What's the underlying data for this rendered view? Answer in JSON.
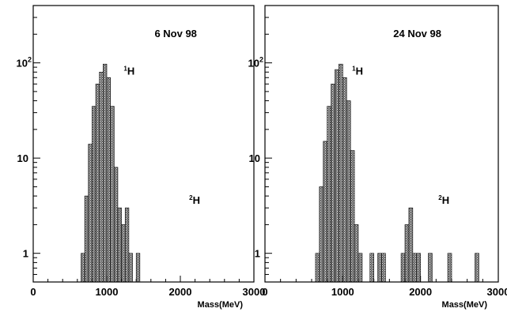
{
  "chart_data": [
    {
      "type": "histogram",
      "title": "6 Nov 98",
      "xlabel": "Mass(MeV)",
      "ylabel": "",
      "xlim": [
        0,
        3000
      ],
      "ylim": [
        0.5,
        400
      ],
      "yscale": "log",
      "bin_width": 50,
      "x_ticks": [
        "0",
        "1000",
        "2000",
        "3000"
      ],
      "y_ticks": [
        {
          "value": 1,
          "label": "1"
        },
        {
          "value": 10,
          "label": "10"
        },
        {
          "value": 100,
          "label": "10",
          "sup": "2"
        }
      ],
      "annotations": [
        {
          "label": "H",
          "sup": "1",
          "x": 1230,
          "y": 75
        },
        {
          "label": "H",
          "sup": "2",
          "x": 2120,
          "y": 3.3
        }
      ],
      "bins": [
        {
          "x": 650,
          "value": 1
        },
        {
          "x": 700,
          "value": 4
        },
        {
          "x": 750,
          "value": 14
        },
        {
          "x": 800,
          "value": 35
        },
        {
          "x": 850,
          "value": 60
        },
        {
          "x": 900,
          "value": 80
        },
        {
          "x": 950,
          "value": 97
        },
        {
          "x": 1000,
          "value": 70
        },
        {
          "x": 1050,
          "value": 35
        },
        {
          "x": 1100,
          "value": 8
        },
        {
          "x": 1150,
          "value": 3
        },
        {
          "x": 1200,
          "value": 2
        },
        {
          "x": 1250,
          "value": 3
        },
        {
          "x": 1300,
          "value": 1
        },
        {
          "x": 1400,
          "value": 1
        }
      ],
      "grid": false
    },
    {
      "type": "histogram",
      "title": "24 Nov 98",
      "xlabel": "Mass(MeV)",
      "ylabel": "",
      "xlim": [
        0,
        3000
      ],
      "ylim": [
        0.5,
        400
      ],
      "yscale": "log",
      "bin_width": 50,
      "x_ticks": [
        "0",
        "1000",
        "2000",
        "3000"
      ],
      "y_ticks": [
        {
          "value": 1,
          "label": "1"
        },
        {
          "value": 10,
          "label": "10"
        },
        {
          "value": 100,
          "label": "10",
          "sup": "2"
        }
      ],
      "annotations": [
        {
          "label": "H",
          "sup": "1",
          "x": 1120,
          "y": 75
        },
        {
          "label": "H",
          "sup": "2",
          "x": 2230,
          "y": 3.3
        }
      ],
      "bins": [
        {
          "x": 650,
          "value": 1
        },
        {
          "x": 700,
          "value": 5
        },
        {
          "x": 750,
          "value": 15
        },
        {
          "x": 800,
          "value": 35
        },
        {
          "x": 850,
          "value": 60
        },
        {
          "x": 900,
          "value": 85
        },
        {
          "x": 950,
          "value": 97
        },
        {
          "x": 1000,
          "value": 70
        },
        {
          "x": 1050,
          "value": 40
        },
        {
          "x": 1100,
          "value": 12
        },
        {
          "x": 1150,
          "value": 2
        },
        {
          "x": 1200,
          "value": 1
        },
        {
          "x": 1350,
          "value": 1
        },
        {
          "x": 1450,
          "value": 1
        },
        {
          "x": 1500,
          "value": 1
        },
        {
          "x": 1750,
          "value": 1
        },
        {
          "x": 1800,
          "value": 2
        },
        {
          "x": 1850,
          "value": 3
        },
        {
          "x": 1900,
          "value": 1
        },
        {
          "x": 1950,
          "value": 1
        },
        {
          "x": 2100,
          "value": 1
        },
        {
          "x": 2350,
          "value": 1
        },
        {
          "x": 2700,
          "value": 1
        }
      ],
      "grid": false
    }
  ]
}
